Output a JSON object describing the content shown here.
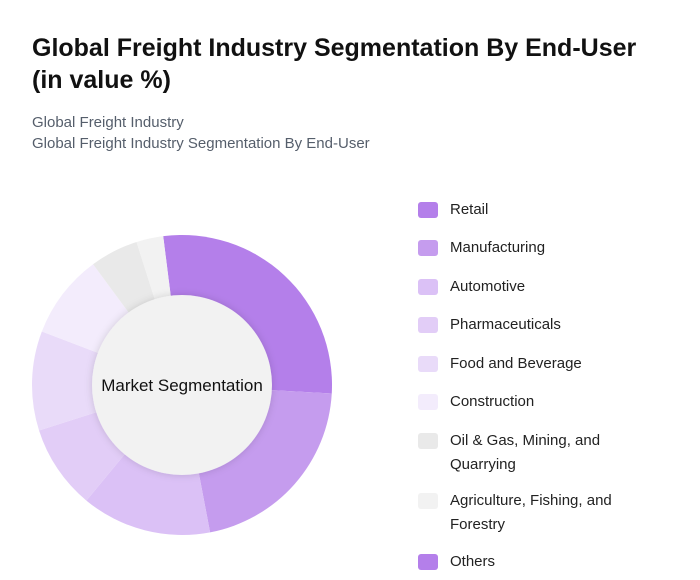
{
  "header": {
    "title": "Global Freight Industry Segmentation By End-User (in value %)",
    "subtitle1": "Global Freight Industry",
    "subtitle2": "Global Freight Industry Segmentation By End-User"
  },
  "chart_data": {
    "type": "pie",
    "style": "donut",
    "center_label": "Market Segmentation",
    "categories": [
      "Retail",
      "Manufacturing",
      "Automotive",
      "Pharmaceuticals",
      "Food and Beverage",
      "Construction",
      "Oil & Gas, Mining, and Quarrying",
      "Agriculture, Fishing, and Forestry",
      "Others"
    ],
    "values": [
      27.9,
      21.1,
      14.0,
      9.1,
      10.7,
      9.1,
      5.2,
      2.9,
      0
    ],
    "unit": "%",
    "colors": [
      "#b47fea",
      "#c59cee",
      "#dbc1f6",
      "#e2cdf7",
      "#e9dbf9",
      "#f3ecfc",
      "#e9e9e9",
      "#f2f2f2",
      "#b47fea"
    ],
    "legend_position": "right"
  }
}
